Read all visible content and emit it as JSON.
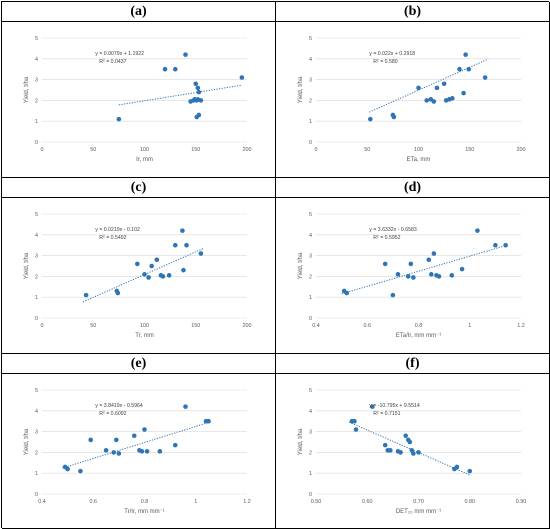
{
  "panel_labels": [
    "(a)",
    "(b)",
    "(c)",
    "(d)",
    "(e)",
    "(f)"
  ],
  "style": {
    "point_color": "#2e75b6",
    "trend_color": "#2e75b6",
    "grid_color": "#d9d9d9"
  },
  "chart_data": [
    {
      "id": "a",
      "type": "scatter",
      "xlabel": "Ir, mm",
      "ylabel": "Yield, t/ha",
      "xlim": [
        0,
        200
      ],
      "ylim": [
        0,
        5
      ],
      "xticks": [
        "0",
        "50",
        "100",
        "150",
        "200"
      ],
      "xtick_values": [
        0,
        50,
        100,
        150,
        200
      ],
      "yticks": [
        "0",
        "1",
        "2",
        "3",
        "4",
        "5"
      ],
      "ytick_values": [
        0,
        1,
        2,
        3,
        4,
        5
      ],
      "equation": "y = 0.0079x + 1.1922",
      "r2": "R² = 0.0437",
      "trend": {
        "slope": 0.0079,
        "intercept": 1.1922,
        "x_range": [
          75,
          195
        ]
      },
      "points": [
        [
          75,
          1.1
        ],
        [
          120,
          3.5
        ],
        [
          130,
          3.5
        ],
        [
          140,
          4.2
        ],
        [
          145,
          1.95
        ],
        [
          148,
          2.0
        ],
        [
          149,
          2.05
        ],
        [
          150,
          2.8
        ],
        [
          151,
          2.0
        ],
        [
          151,
          1.2
        ],
        [
          152,
          2.6
        ],
        [
          152,
          2.05
        ],
        [
          153,
          1.3
        ],
        [
          153,
          2.4
        ],
        [
          155,
          2.0
        ],
        [
          195,
          3.1
        ]
      ]
    },
    {
      "id": "b",
      "type": "scatter",
      "xlabel": "ETa, mm",
      "ylabel": "Yield, t/ha",
      "xlim": [
        0,
        200
      ],
      "ylim": [
        0,
        5
      ],
      "xticks": [
        "0",
        "50",
        "100",
        "150",
        "200"
      ],
      "xtick_values": [
        0,
        50,
        100,
        150,
        200
      ],
      "yticks": [
        "0",
        "1",
        "2",
        "3",
        "4",
        "5"
      ],
      "ytick_values": [
        0,
        1,
        2,
        3,
        4,
        5
      ],
      "equation": "y = 0.022x + 0.2918",
      "r2": "R² = 0.580",
      "trend": {
        "slope": 0.022,
        "intercept": 0.2918,
        "x_range": [
          52,
          168
        ]
      },
      "points": [
        [
          53,
          1.1
        ],
        [
          75,
          1.3
        ],
        [
          76,
          1.2
        ],
        [
          100,
          2.6
        ],
        [
          108,
          2.0
        ],
        [
          112,
          2.05
        ],
        [
          115,
          1.95
        ],
        [
          118,
          2.6
        ],
        [
          125,
          2.8
        ],
        [
          127,
          2.0
        ],
        [
          130,
          2.05
        ],
        [
          133,
          2.1
        ],
        [
          140,
          3.5
        ],
        [
          144,
          2.35
        ],
        [
          146,
          4.2
        ],
        [
          149,
          3.5
        ],
        [
          165,
          3.1
        ]
      ]
    },
    {
      "id": "c",
      "type": "scatter",
      "xlabel": "Tr, mm",
      "ylabel": "Yield, t/ha",
      "xlim": [
        0,
        200
      ],
      "ylim": [
        0,
        5
      ],
      "xticks": [
        "0",
        "50",
        "100",
        "150",
        "200"
      ],
      "xtick_values": [
        0,
        50,
        100,
        150,
        200
      ],
      "yticks": [
        "0",
        "1",
        "2",
        "3",
        "4",
        "5"
      ],
      "ytick_values": [
        0,
        1,
        2,
        3,
        4,
        5
      ],
      "equation": "y = 0.0219x - 0.102",
      "r2": "R² = 0.5492",
      "trend": {
        "slope": 0.0219,
        "intercept": -0.102,
        "x_range": [
          40,
          158
        ]
      },
      "points": [
        [
          43,
          1.1
        ],
        [
          73,
          1.3
        ],
        [
          74,
          1.2
        ],
        [
          93,
          2.6
        ],
        [
          100,
          2.1
        ],
        [
          104,
          1.95
        ],
        [
          107,
          2.5
        ],
        [
          112,
          2.8
        ],
        [
          116,
          2.05
        ],
        [
          118,
          2.0
        ],
        [
          124,
          2.05
        ],
        [
          130,
          3.5
        ],
        [
          137,
          4.2
        ],
        [
          138,
          2.3
        ],
        [
          141,
          3.5
        ],
        [
          155,
          3.1
        ]
      ]
    },
    {
      "id": "d",
      "type": "scatter",
      "xlabel": "ETa/Ir, mm mm⁻¹",
      "ylabel": "Yield, t/ha",
      "xlim": [
        0.4,
        1.2
      ],
      "ylim": [
        0,
        5
      ],
      "xticks": [
        "0.4",
        "0.6",
        "0.8",
        "1",
        "1.2"
      ],
      "xtick_values": [
        0.4,
        0.6,
        0.8,
        1.0,
        1.2
      ],
      "yticks": [
        "0",
        "1",
        "2",
        "3",
        "4",
        "5"
      ],
      "ytick_values": [
        0,
        1,
        2,
        3,
        4,
        5
      ],
      "equation": "y = 3.6332x - 0.6583",
      "r2": "R² = 0.5952",
      "trend": {
        "slope": 3.6332,
        "intercept": -0.6583,
        "x_range": [
          0.5,
          1.15
        ]
      },
      "points": [
        [
          0.51,
          1.3
        ],
        [
          0.52,
          1.2
        ],
        [
          0.67,
          2.6
        ],
        [
          0.7,
          1.1
        ],
        [
          0.72,
          2.1
        ],
        [
          0.76,
          2.0
        ],
        [
          0.77,
          2.6
        ],
        [
          0.78,
          1.95
        ],
        [
          0.84,
          2.8
        ],
        [
          0.85,
          2.1
        ],
        [
          0.86,
          3.1
        ],
        [
          0.87,
          2.05
        ],
        [
          0.88,
          2.0
        ],
        [
          0.93,
          2.05
        ],
        [
          0.97,
          2.35
        ],
        [
          1.03,
          4.2
        ],
        [
          1.1,
          3.5
        ],
        [
          1.14,
          3.5
        ]
      ]
    },
    {
      "id": "e",
      "type": "scatter",
      "xlabel": "Tr/Ir, mm mm⁻¹",
      "ylabel": "Yield, t/ha",
      "xlim": [
        0.4,
        1.2
      ],
      "ylim": [
        0,
        5
      ],
      "xticks": [
        "0.4",
        "0.6",
        "0.8",
        "1",
        "1.2"
      ],
      "xtick_values": [
        0.4,
        0.6,
        0.8,
        1.0,
        1.2
      ],
      "yticks": [
        "0",
        "1",
        "2",
        "3",
        "4",
        "5"
      ],
      "ytick_values": [
        0,
        1,
        2,
        3,
        4,
        5
      ],
      "equation": "y = 3.8419x - 0.5964",
      "r2": "R² = 0.6092",
      "trend": {
        "slope": 3.8419,
        "intercept": -0.5964,
        "x_range": [
          0.48,
          1.06
        ]
      },
      "points": [
        [
          0.49,
          1.3
        ],
        [
          0.5,
          1.2
        ],
        [
          0.55,
          1.1
        ],
        [
          0.59,
          2.6
        ],
        [
          0.65,
          2.1
        ],
        [
          0.68,
          2.0
        ],
        [
          0.69,
          2.6
        ],
        [
          0.7,
          1.95
        ],
        [
          0.76,
          2.8
        ],
        [
          0.78,
          2.1
        ],
        [
          0.79,
          2.05
        ],
        [
          0.8,
          3.1
        ],
        [
          0.81,
          2.05
        ],
        [
          0.86,
          2.05
        ],
        [
          0.92,
          2.35
        ],
        [
          0.96,
          4.2
        ],
        [
          1.04,
          3.5
        ],
        [
          1.05,
          3.5
        ]
      ]
    },
    {
      "id": "f",
      "type": "scatter",
      "xlabel": "DET₂₀ mm mm⁻¹",
      "ylabel": "Yield, t/ha",
      "xlim": [
        0.5,
        0.9
      ],
      "ylim": [
        0,
        5
      ],
      "xticks": [
        "0.50",
        "0.60",
        "0.70",
        "0.80",
        "0.90"
      ],
      "xtick_values": [
        0.5,
        0.6,
        0.7,
        0.8,
        0.9
      ],
      "yticks": [
        "0",
        "1",
        "2",
        "3",
        "4",
        "5"
      ],
      "ytick_values": [
        0,
        1,
        2,
        3,
        4,
        5
      ],
      "equation": "y = -10.795x + 9.5514",
      "r2": "R² = 0.7151",
      "trend": {
        "slope": -10.795,
        "intercept": 9.5514,
        "x_range": [
          0.565,
          0.8
        ]
      },
      "points": [
        [
          0.57,
          3.5
        ],
        [
          0.575,
          3.5
        ],
        [
          0.578,
          3.1
        ],
        [
          0.61,
          4.2
        ],
        [
          0.635,
          2.35
        ],
        [
          0.64,
          2.1
        ],
        [
          0.645,
          2.1
        ],
        [
          0.66,
          2.05
        ],
        [
          0.665,
          2.0
        ],
        [
          0.675,
          2.8
        ],
        [
          0.68,
          2.6
        ],
        [
          0.683,
          2.5
        ],
        [
          0.687,
          2.1
        ],
        [
          0.69,
          1.95
        ],
        [
          0.7,
          2.0
        ],
        [
          0.77,
          1.2
        ],
        [
          0.775,
          1.3
        ],
        [
          0.8,
          1.1
        ]
      ]
    }
  ]
}
